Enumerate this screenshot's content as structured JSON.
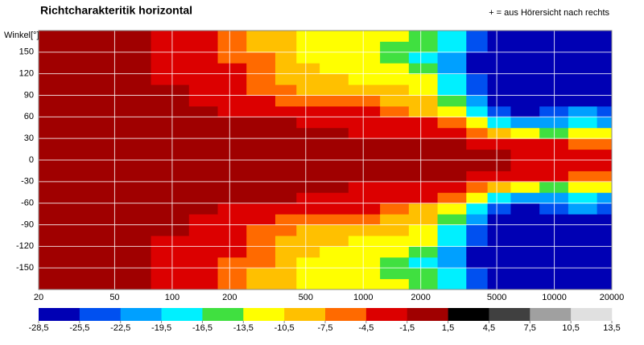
{
  "chart_data": {
    "type": "heatmap",
    "title": "Richtcharakteritik horizontal",
    "annotation": "+ = aus Hörersicht nach rechts",
    "ylabel": "Winkel[°]",
    "x": [
      20,
      35,
      60,
      100,
      150,
      200,
      300,
      400,
      500,
      700,
      1000,
      1500,
      2000,
      3000,
      4000,
      5000,
      7000,
      10000,
      14000,
      20000
    ],
    "y": [
      -172.5,
      -157.5,
      -142.5,
      -127.5,
      -112.5,
      -97.5,
      -82.5,
      -67.5,
      -52.5,
      -37.5,
      -22.5,
      -7.5,
      7.5,
      22.5,
      37.5,
      52.5,
      67.5,
      82.5,
      97.5,
      112.5,
      127.5,
      142.5,
      157.5,
      172.5
    ],
    "z": [
      [
        0,
        0,
        0,
        -2,
        -3,
        -6,
        -9,
        -9,
        -12,
        -12,
        -12,
        -12,
        -15,
        -18,
        -24,
        -27,
        -27,
        -27,
        -27,
        -27
      ],
      [
        0,
        0,
        0,
        -2,
        -3,
        -6,
        -9,
        -9,
        -12,
        -12,
        -12,
        -15,
        -15,
        -18,
        -24,
        -27,
        -27,
        -27,
        -27,
        -27
      ],
      [
        0,
        0,
        0,
        -2,
        -3,
        -6,
        -6,
        -9,
        -12,
        -12,
        -12,
        -15,
        -18,
        -21,
        -27,
        -27,
        -27,
        -27,
        -27,
        -27
      ],
      [
        0,
        0,
        0,
        -2,
        -3,
        -3,
        -6,
        -9,
        -9,
        -12,
        -12,
        -12,
        -15,
        -21,
        -27,
        -27,
        -27,
        -27,
        -27,
        -27
      ],
      [
        0,
        0,
        0,
        -2,
        -3,
        -3,
        -6,
        -9,
        -9,
        -9,
        -12,
        -12,
        -12,
        -18,
        -24,
        -27,
        -27,
        -27,
        -27,
        -27
      ],
      [
        0,
        0,
        0,
        -1,
        -3,
        -3,
        -6,
        -6,
        -9,
        -9,
        -9,
        -9,
        -12,
        -18,
        -24,
        -27,
        -27,
        -27,
        -27,
        -27
      ],
      [
        0,
        0,
        0,
        -1,
        -2,
        -3,
        -3,
        -6,
        -6,
        -6,
        -6,
        -9,
        -9,
        -15,
        -21,
        -27,
        -27,
        -27,
        -27,
        -27
      ],
      [
        0,
        0,
        0,
        0,
        -1,
        -2,
        -3,
        -3,
        -3,
        -3,
        -3,
        -6,
        -9,
        -12,
        -18,
        -24,
        -27,
        -24,
        -22,
        -24
      ],
      [
        0,
        0,
        0,
        0,
        0,
        0,
        -1,
        -1,
        -2,
        -3,
        -3,
        -3,
        -3,
        -6,
        -12,
        -18,
        -22,
        -20,
        -18,
        -20
      ],
      [
        0,
        0,
        0,
        0,
        0,
        0,
        0,
        0,
        -1,
        -1,
        -2,
        -2,
        -3,
        -3,
        -6,
        -9,
        -12,
        -14,
        -12,
        -12
      ],
      [
        0,
        0,
        0,
        0,
        0,
        0,
        0,
        0,
        0,
        0,
        0,
        0,
        0,
        -1,
        -2,
        -3,
        -3,
        -4,
        -6,
        -6
      ],
      [
        0,
        0,
        0,
        0,
        0,
        0,
        0,
        0,
        0,
        0,
        0,
        0,
        0,
        0,
        -1,
        -1,
        -2,
        -2,
        -3,
        -3
      ],
      [
        0,
        0,
        0,
        0,
        0,
        0,
        0,
        0,
        0,
        0,
        0,
        0,
        0,
        0,
        -1,
        -1,
        -2,
        -2,
        -3,
        -3
      ],
      [
        0,
        0,
        0,
        0,
        0,
        0,
        0,
        0,
        0,
        0,
        0,
        0,
        0,
        -1,
        -2,
        -3,
        -3,
        -4,
        -6,
        -6
      ],
      [
        0,
        0,
        0,
        0,
        0,
        0,
        0,
        0,
        -1,
        -1,
        -2,
        -2,
        -3,
        -3,
        -6,
        -9,
        -12,
        -14,
        -12,
        -12
      ],
      [
        0,
        0,
        0,
        0,
        0,
        0,
        -1,
        -1,
        -2,
        -3,
        -3,
        -3,
        -3,
        -6,
        -12,
        -18,
        -22,
        -20,
        -18,
        -20
      ],
      [
        0,
        0,
        0,
        0,
        -1,
        -2,
        -3,
        -3,
        -3,
        -3,
        -3,
        -6,
        -9,
        -12,
        -18,
        -24,
        -27,
        -24,
        -22,
        -24
      ],
      [
        0,
        0,
        0,
        -1,
        -2,
        -3,
        -3,
        -6,
        -6,
        -6,
        -6,
        -9,
        -9,
        -15,
        -21,
        -27,
        -27,
        -27,
        -27,
        -27
      ],
      [
        0,
        0,
        0,
        -1,
        -3,
        -3,
        -6,
        -6,
        -9,
        -9,
        -9,
        -9,
        -12,
        -18,
        -24,
        -27,
        -27,
        -27,
        -27,
        -27
      ],
      [
        0,
        0,
        0,
        -2,
        -3,
        -3,
        -6,
        -9,
        -9,
        -9,
        -12,
        -12,
        -12,
        -18,
        -24,
        -27,
        -27,
        -27,
        -27,
        -27
      ],
      [
        0,
        0,
        0,
        -2,
        -3,
        -3,
        -6,
        -9,
        -9,
        -12,
        -12,
        -12,
        -15,
        -21,
        -27,
        -27,
        -27,
        -27,
        -27,
        -27
      ],
      [
        0,
        0,
        0,
        -2,
        -3,
        -6,
        -6,
        -9,
        -12,
        -12,
        -12,
        -15,
        -18,
        -21,
        -27,
        -27,
        -27,
        -27,
        -27,
        -27
      ],
      [
        0,
        0,
        0,
        -2,
        -3,
        -6,
        -9,
        -9,
        -12,
        -12,
        -12,
        -15,
        -15,
        -18,
        -24,
        -27,
        -27,
        -27,
        -27,
        -27
      ],
      [
        0,
        0,
        0,
        -2,
        -3,
        -6,
        -9,
        -9,
        -12,
        -12,
        -12,
        -12,
        -15,
        -18,
        -24,
        -27,
        -27,
        -27,
        -27,
        -27
      ]
    ],
    "log_x": true,
    "xlim": [
      20,
      20000
    ],
    "xticks": [
      20,
      50,
      100,
      200,
      500,
      1000,
      2000,
      5000,
      10000,
      20000
    ],
    "ylim": [
      -180,
      180
    ],
    "yticks": [
      -150,
      -120,
      -90,
      -60,
      -30,
      0,
      30,
      60,
      90,
      120,
      150
    ],
    "grid": true,
    "colorbar": {
      "ticks": [
        {
          "value": -28.5,
          "label": "-28,5"
        },
        {
          "value": -25.5,
          "label": "-25,5"
        },
        {
          "value": -22.5,
          "label": "-22,5"
        },
        {
          "value": -19.5,
          "label": "-19,5"
        },
        {
          "value": -16.5,
          "label": "-16,5"
        },
        {
          "value": -13.5,
          "label": "-13,5"
        },
        {
          "value": -10.5,
          "label": "-10,5"
        },
        {
          "value": -7.5,
          "label": "-7,5"
        },
        {
          "value": -4.5,
          "label": "-4,5"
        },
        {
          "value": -1.5,
          "label": "-1,5"
        },
        {
          "value": 1.5,
          "label": "1,5"
        },
        {
          "value": 4.5,
          "label": "4,5"
        },
        {
          "value": 7.5,
          "label": "7,5"
        },
        {
          "value": 10.5,
          "label": "10,5"
        },
        {
          "value": 13.5,
          "label": "13,5"
        }
      ],
      "colors": [
        "#0000b4",
        "#0050f0",
        "#00a0ff",
        "#00f0ff",
        "#40e040",
        "#ffff00",
        "#ffc000",
        "#ff6a00",
        "#dc0000",
        "#a00000",
        "#000000",
        "#404040",
        "#a0a0a0",
        "#e0e0e0"
      ]
    }
  }
}
